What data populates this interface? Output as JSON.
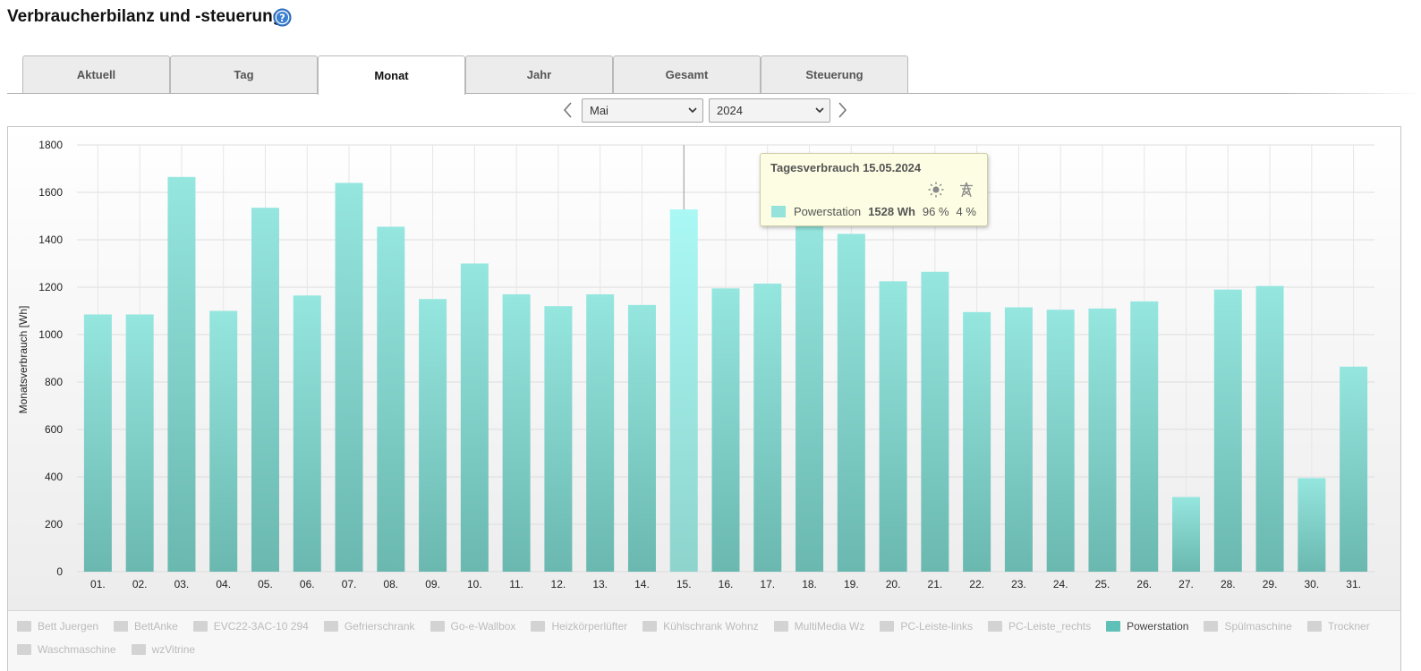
{
  "header": {
    "title": "Verbraucherbilanz und -steuerung",
    "help_icon": "question-circle-icon"
  },
  "tabs": [
    {
      "label": "Aktuell",
      "active": false
    },
    {
      "label": "Tag",
      "active": false
    },
    {
      "label": "Monat",
      "active": true
    },
    {
      "label": "Jahr",
      "active": false
    },
    {
      "label": "Gesamt",
      "active": false
    },
    {
      "label": "Steuerung",
      "active": false
    }
  ],
  "period": {
    "month": "Mai",
    "year": "2024",
    "prev_icon": "chevron-left-icon",
    "next_icon": "chevron-right-icon"
  },
  "chart_data": {
    "type": "bar",
    "ylabel": "Monatsverbrauch [Wh]",
    "xlabel": "",
    "ylim": [
      0,
      1800
    ],
    "yticks": [
      0,
      200,
      400,
      600,
      800,
      1000,
      1200,
      1400,
      1600,
      1800
    ],
    "grid": true,
    "categories": [
      "01.",
      "02.",
      "03.",
      "04.",
      "05.",
      "06.",
      "07.",
      "08.",
      "09.",
      "10.",
      "11.",
      "12.",
      "13.",
      "14.",
      "15.",
      "16.",
      "17.",
      "18.",
      "19.",
      "20.",
      "21.",
      "22.",
      "23.",
      "24.",
      "25.",
      "26.",
      "27.",
      "28.",
      "29.",
      "30.",
      "31."
    ],
    "series": [
      {
        "name": "Powerstation",
        "color": "#8fe0d9",
        "values": [
          1085,
          1085,
          1665,
          1100,
          1535,
          1165,
          1640,
          1455,
          1150,
          1300,
          1170,
          1120,
          1170,
          1125,
          1528,
          1195,
          1215,
          1470,
          1425,
          1225,
          1265,
          1095,
          1115,
          1105,
          1110,
          1140,
          315,
          1190,
          1205,
          395,
          865
        ]
      }
    ],
    "highlighted_index": 14,
    "tooltip": {
      "title": "Tagesverbrauch 15.05.2024",
      "series": "Powerstation",
      "value": "1528 Wh",
      "solar_share": "96 %",
      "grid_share": "4 %",
      "solar_icon": "sun-icon",
      "grid_icon": "power-mast-icon"
    }
  },
  "legend": {
    "items": [
      {
        "label": "Bett Juergen",
        "active": false
      },
      {
        "label": "BettAnke",
        "active": false
      },
      {
        "label": "EVC22-3AC-10 294",
        "active": false
      },
      {
        "label": "Gefrierschrank",
        "active": false
      },
      {
        "label": "Go-e-Wallbox",
        "active": false
      },
      {
        "label": "Heizkörperlüfter",
        "active": false
      },
      {
        "label": "Kühlschrank Wohnz",
        "active": false
      },
      {
        "label": "MultiMedia Wz",
        "active": false
      },
      {
        "label": "PC-Leiste-links",
        "active": false
      },
      {
        "label": "PC-Leiste_rechts",
        "active": false
      },
      {
        "label": "Powerstation",
        "active": true
      },
      {
        "label": "Spülmaschine",
        "active": false
      },
      {
        "label": "Trockner",
        "active": false
      },
      {
        "label": "Waschmaschine",
        "active": false
      },
      {
        "label": "wzVitrine",
        "active": false
      }
    ]
  }
}
